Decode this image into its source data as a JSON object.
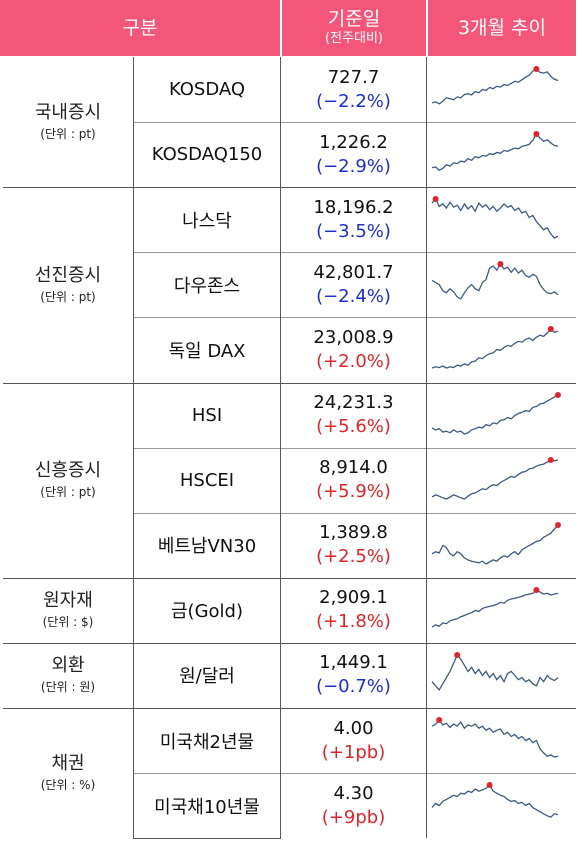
{
  "header": {
    "category": "구분",
    "base_date": "기준일",
    "base_date_sub": "(전주대비)",
    "trend": "3개월 추이"
  },
  "colors": {
    "header_bg": "#f4567a",
    "down": "#1b2fd0",
    "up": "#e0242a",
    "spark_line": "#3d5a80",
    "spark_dot": "#e0242a"
  },
  "groups": [
    {
      "name": "국내증시",
      "unit": "(단위 : pt)",
      "rows": [
        {
          "label": "KOSDAQ",
          "value": "727.7",
          "change": "(−2.2%)",
          "dir": "down"
        },
        {
          "label": "KOSDAQ150",
          "value": "1,226.2",
          "change": "(−2.9%)",
          "dir": "down"
        }
      ]
    },
    {
      "name": "선진증시",
      "unit": "(단위 : pt)",
      "rows": [
        {
          "label": "나스닥",
          "value": "18,196.2",
          "change": "(−3.5%)",
          "dir": "down"
        },
        {
          "label": "다우존스",
          "value": "42,801.7",
          "change": "(−2.4%)",
          "dir": "down"
        },
        {
          "label": "독일 DAX",
          "value": "23,008.9",
          "change": "(+2.0%)",
          "dir": "up"
        }
      ]
    },
    {
      "name": "신흥증시",
      "unit": "(단위 : pt)",
      "rows": [
        {
          "label": "HSI",
          "value": "24,231.3",
          "change": "(+5.6%)",
          "dir": "up"
        },
        {
          "label": "HSCEI",
          "value": "8,914.0",
          "change": "(+5.9%)",
          "dir": "up"
        },
        {
          "label": "베트남VN30",
          "value": "1,389.8",
          "change": "(+2.5%)",
          "dir": "up"
        }
      ]
    },
    {
      "name": "원자재",
      "unit": "(단위 : $)",
      "rows": [
        {
          "label": "금(Gold)",
          "value": "2,909.1",
          "change": "(+1.8%)",
          "dir": "up"
        }
      ]
    },
    {
      "name": "외환",
      "unit": "(단위 : 원)",
      "rows": [
        {
          "label": "원/달러",
          "value": "1,449.1",
          "change": "(−0.7%)",
          "dir": "down"
        }
      ]
    },
    {
      "name": "채권",
      "unit": "(단위 : %)",
      "rows": [
        {
          "label": "미국채2년물",
          "value": "4.00",
          "change": "(+1pb)",
          "dir": "up"
        },
        {
          "label": "미국채10년물",
          "value": "4.30",
          "change": "(+9pb)",
          "dir": "up"
        }
      ]
    }
  ],
  "sparklines": [
    [
      0.18,
      0.2,
      0.15,
      0.22,
      0.3,
      0.28,
      0.25,
      0.32,
      0.3,
      0.38,
      0.4,
      0.37,
      0.45,
      0.42,
      0.5,
      0.48,
      0.55,
      0.52,
      0.58,
      0.56,
      0.62,
      0.6,
      0.65,
      0.7,
      0.68,
      0.74,
      0.8,
      0.85,
      0.95,
      1.0,
      0.92,
      0.9,
      0.93,
      0.82,
      0.75,
      0.72
    ],
    [
      0.18,
      0.2,
      0.12,
      0.16,
      0.25,
      0.22,
      0.3,
      0.28,
      0.34,
      0.32,
      0.4,
      0.36,
      0.45,
      0.42,
      0.48,
      0.46,
      0.52,
      0.5,
      0.55,
      0.53,
      0.6,
      0.58,
      0.62,
      0.66,
      0.64,
      0.7,
      0.72,
      0.75,
      0.85,
      1.0,
      0.9,
      0.82,
      0.86,
      0.78,
      0.72,
      0.7
    ],
    [
      0.9,
      1.0,
      0.82,
      0.88,
      0.78,
      0.92,
      0.8,
      0.85,
      0.72,
      0.88,
      0.76,
      0.84,
      0.7,
      0.9,
      0.8,
      0.86,
      0.74,
      0.82,
      0.7,
      0.78,
      0.88,
      0.8,
      0.84,
      0.72,
      0.78,
      0.66,
      0.7,
      0.55,
      0.6,
      0.45,
      0.35,
      0.25,
      0.3,
      0.15,
      0.05,
      0.1
    ],
    [
      0.6,
      0.55,
      0.5,
      0.35,
      0.3,
      0.4,
      0.32,
      0.2,
      0.15,
      0.3,
      0.42,
      0.5,
      0.4,
      0.35,
      0.55,
      0.62,
      0.9,
      0.95,
      0.85,
      1.0,
      0.88,
      0.92,
      0.8,
      0.9,
      0.78,
      0.85,
      0.72,
      0.68,
      0.75,
      0.7,
      0.5,
      0.38,
      0.3,
      0.28,
      0.32,
      0.25
    ],
    [
      0.05,
      0.08,
      0.06,
      0.1,
      0.05,
      0.08,
      0.06,
      0.12,
      0.1,
      0.15,
      0.12,
      0.2,
      0.22,
      0.3,
      0.28,
      0.35,
      0.4,
      0.42,
      0.5,
      0.48,
      0.55,
      0.6,
      0.58,
      0.65,
      0.7,
      0.68,
      0.75,
      0.78,
      0.72,
      0.8,
      0.85,
      0.82,
      0.9,
      1.0,
      0.92,
      0.95
    ],
    [
      0.2,
      0.15,
      0.18,
      0.1,
      0.12,
      0.08,
      0.15,
      0.1,
      0.12,
      0.05,
      0.08,
      0.15,
      0.18,
      0.22,
      0.2,
      0.28,
      0.25,
      0.32,
      0.3,
      0.38,
      0.4,
      0.45,
      0.42,
      0.5,
      0.55,
      0.58,
      0.62,
      0.6,
      0.7,
      0.72,
      0.78,
      0.8,
      0.85,
      0.9,
      0.95,
      1.0
    ],
    [
      0.1,
      0.15,
      0.12,
      0.08,
      0.05,
      0.1,
      0.15,
      0.12,
      0.08,
      0.05,
      0.12,
      0.18,
      0.2,
      0.25,
      0.3,
      0.28,
      0.35,
      0.4,
      0.38,
      0.45,
      0.5,
      0.55,
      0.6,
      0.58,
      0.65,
      0.7,
      0.72,
      0.78,
      0.8,
      0.85,
      0.88,
      0.9,
      0.95,
      1.0,
      0.98,
      1.0
    ],
    [
      0.3,
      0.35,
      0.32,
      0.5,
      0.45,
      0.3,
      0.25,
      0.35,
      0.3,
      0.2,
      0.15,
      0.12,
      0.1,
      0.08,
      0.12,
      0.05,
      0.1,
      0.15,
      0.12,
      0.2,
      0.25,
      0.22,
      0.3,
      0.35,
      0.28,
      0.4,
      0.45,
      0.5,
      0.55,
      0.6,
      0.62,
      0.7,
      0.75,
      0.8,
      0.9,
      1.0
    ],
    [
      0.1,
      0.15,
      0.12,
      0.2,
      0.18,
      0.25,
      0.28,
      0.3,
      0.35,
      0.38,
      0.42,
      0.45,
      0.5,
      0.48,
      0.55,
      0.58,
      0.6,
      0.62,
      0.65,
      0.7,
      0.68,
      0.75,
      0.78,
      0.8,
      0.82,
      0.85,
      0.88,
      0.9,
      0.92,
      1.0,
      0.95,
      0.9,
      0.92,
      0.88,
      0.9,
      0.92
    ],
    [
      0.35,
      0.25,
      0.15,
      0.3,
      0.45,
      0.6,
      0.8,
      1.0,
      0.9,
      0.75,
      0.6,
      0.7,
      0.55,
      0.65,
      0.5,
      0.6,
      0.45,
      0.55,
      0.4,
      0.5,
      0.35,
      0.55,
      0.6,
      0.5,
      0.4,
      0.45,
      0.35,
      0.4,
      0.3,
      0.25,
      0.45,
      0.35,
      0.5,
      0.42,
      0.38,
      0.45
    ],
    [
      0.85,
      0.9,
      1.0,
      0.88,
      0.92,
      0.82,
      0.9,
      0.85,
      0.95,
      0.8,
      0.88,
      0.85,
      0.9,
      0.8,
      0.85,
      0.75,
      0.8,
      0.7,
      0.75,
      0.78,
      0.65,
      0.7,
      0.6,
      0.65,
      0.55,
      0.6,
      0.5,
      0.55,
      0.45,
      0.5,
      0.3,
      0.2,
      0.12,
      0.15,
      0.1,
      0.12
    ],
    [
      0.45,
      0.55,
      0.5,
      0.6,
      0.65,
      0.7,
      0.75,
      0.72,
      0.8,
      0.78,
      0.85,
      0.82,
      0.9,
      0.85,
      0.88,
      0.92,
      1.0,
      0.85,
      0.8,
      0.75,
      0.72,
      0.65,
      0.6,
      0.62,
      0.55,
      0.58,
      0.5,
      0.55,
      0.45,
      0.4,
      0.35,
      0.3,
      0.25,
      0.22,
      0.3,
      0.28
    ]
  ]
}
